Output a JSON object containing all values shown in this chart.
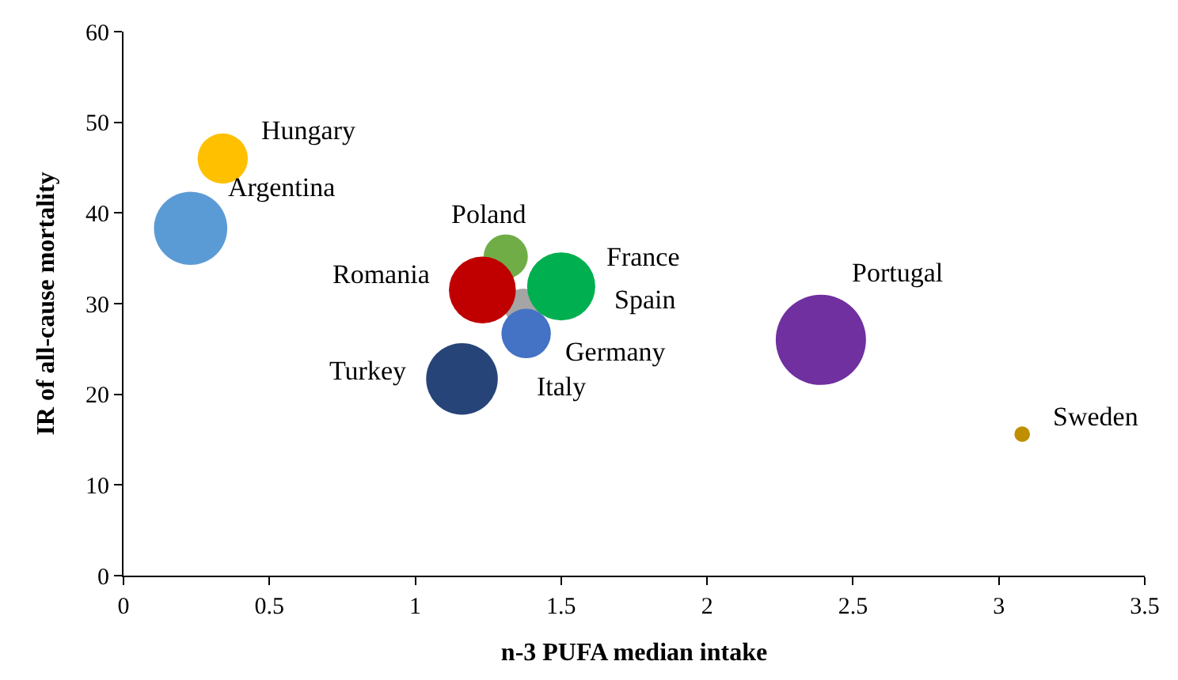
{
  "chart_data": {
    "type": "bubble",
    "xlabel": "n-3 PUFA median intake",
    "ylabel": "IR of all-cause mortality",
    "xlim": [
      0,
      3.5
    ],
    "xticks": [
      0,
      0.5,
      1,
      1.5,
      2,
      2.5,
      3,
      3.5
    ],
    "ylim": [
      0,
      60
    ],
    "yticks": [
      0,
      10,
      20,
      30,
      40,
      50,
      60
    ],
    "grid": false,
    "legend": false,
    "series": [
      {
        "name": "Hungary",
        "color": "#ffc000",
        "x": [
          0.34
        ],
        "values": [
          46.0
        ],
        "sizes": [
          0.31
        ]
      },
      {
        "name": "Argentina",
        "color": "#5b9bd5",
        "x": [
          0.23
        ],
        "values": [
          38.3
        ],
        "sizes": [
          0.66
        ]
      },
      {
        "name": "Poland",
        "color": "#70ad47",
        "x": [
          1.31
        ],
        "values": [
          35.2
        ],
        "sizes": [
          0.24
        ]
      },
      {
        "color": "#a5a5a5",
        "x": [
          1.37
        ],
        "values": [
          29.6
        ],
        "sizes": [
          0.17
        ]
      },
      {
        "name": "Romania",
        "color": "#c00000",
        "x": [
          1.23
        ],
        "values": [
          31.5
        ],
        "sizes": [
          0.55
        ]
      },
      {
        "name": "France",
        "color": "#00b050",
        "x": [
          1.5
        ],
        "values": [
          31.9
        ],
        "sizes": [
          0.57
        ]
      },
      {
        "name": "Germany",
        "color": "#4472c4",
        "x": [
          1.38
        ],
        "values": [
          26.7
        ],
        "sizes": [
          0.3
        ]
      },
      {
        "name": "Turkey",
        "color": "#264478",
        "x": [
          1.16
        ],
        "values": [
          21.7
        ],
        "sizes": [
          0.63
        ]
      },
      {
        "name": "Portugal",
        "color": "#7030a0",
        "x": [
          2.39
        ],
        "values": [
          26.0
        ],
        "sizes": [
          1
        ]
      },
      {
        "name": "Sweden",
        "color": "#bf8f00",
        "x": [
          3.08
        ],
        "values": [
          15.6
        ],
        "sizes": [
          0.03
        ]
      }
    ],
    "annotations": [
      "Spain",
      "Italy"
    ]
  }
}
